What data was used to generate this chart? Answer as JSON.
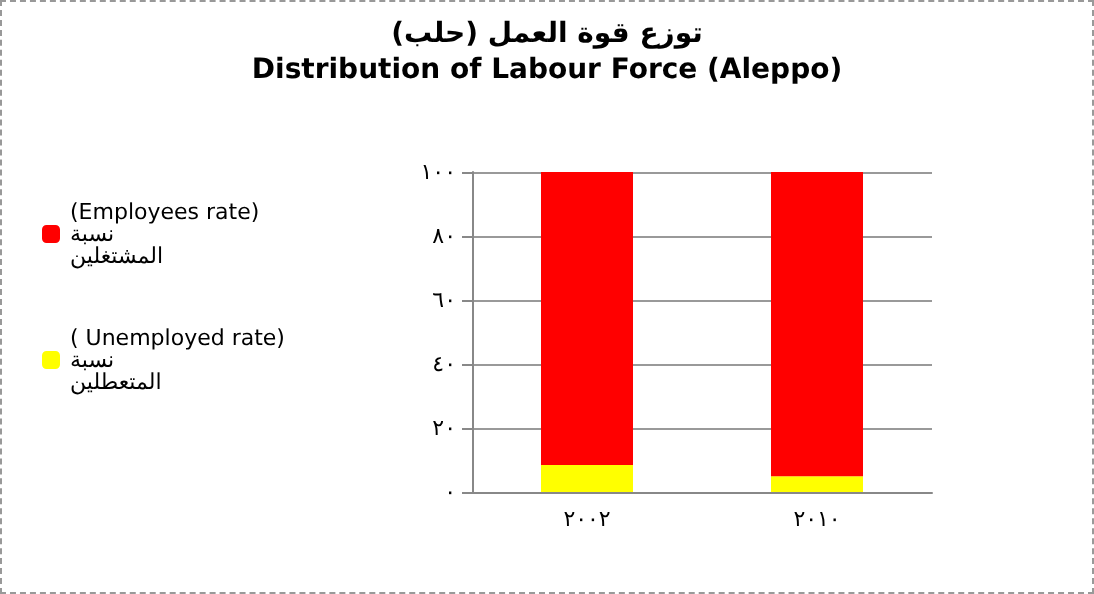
{
  "chart_data": {
    "type": "bar",
    "title": "توزع قوة العمل (حلب)",
    "subtitle": "Distribution of Labour Force (Aleppo)",
    "categories": [
      "٢٠٠٢",
      "٢٠١٠"
    ],
    "stacked": true,
    "series": [
      {
        "name": "( Unemployed rate) نسبة المتعطلين",
        "color": "#ffff00",
        "values": [
          8.4,
          4.9
        ]
      },
      {
        "name": "(Employees rate) نسبة المشتغلين",
        "color": "#ff0000",
        "values": [
          91.6,
          95.1
        ]
      }
    ],
    "ylim": [
      0,
      100
    ],
    "yticks": [
      {
        "value": 0,
        "label": "٠"
      },
      {
        "value": 20,
        "label": "٢٠"
      },
      {
        "value": 40,
        "label": "٤٠"
      },
      {
        "value": 60,
        "label": "٦٠"
      },
      {
        "value": 80,
        "label": "٨٠"
      },
      {
        "value": 100,
        "label": "١٠٠"
      }
    ],
    "grid": "y",
    "legend": "left"
  }
}
